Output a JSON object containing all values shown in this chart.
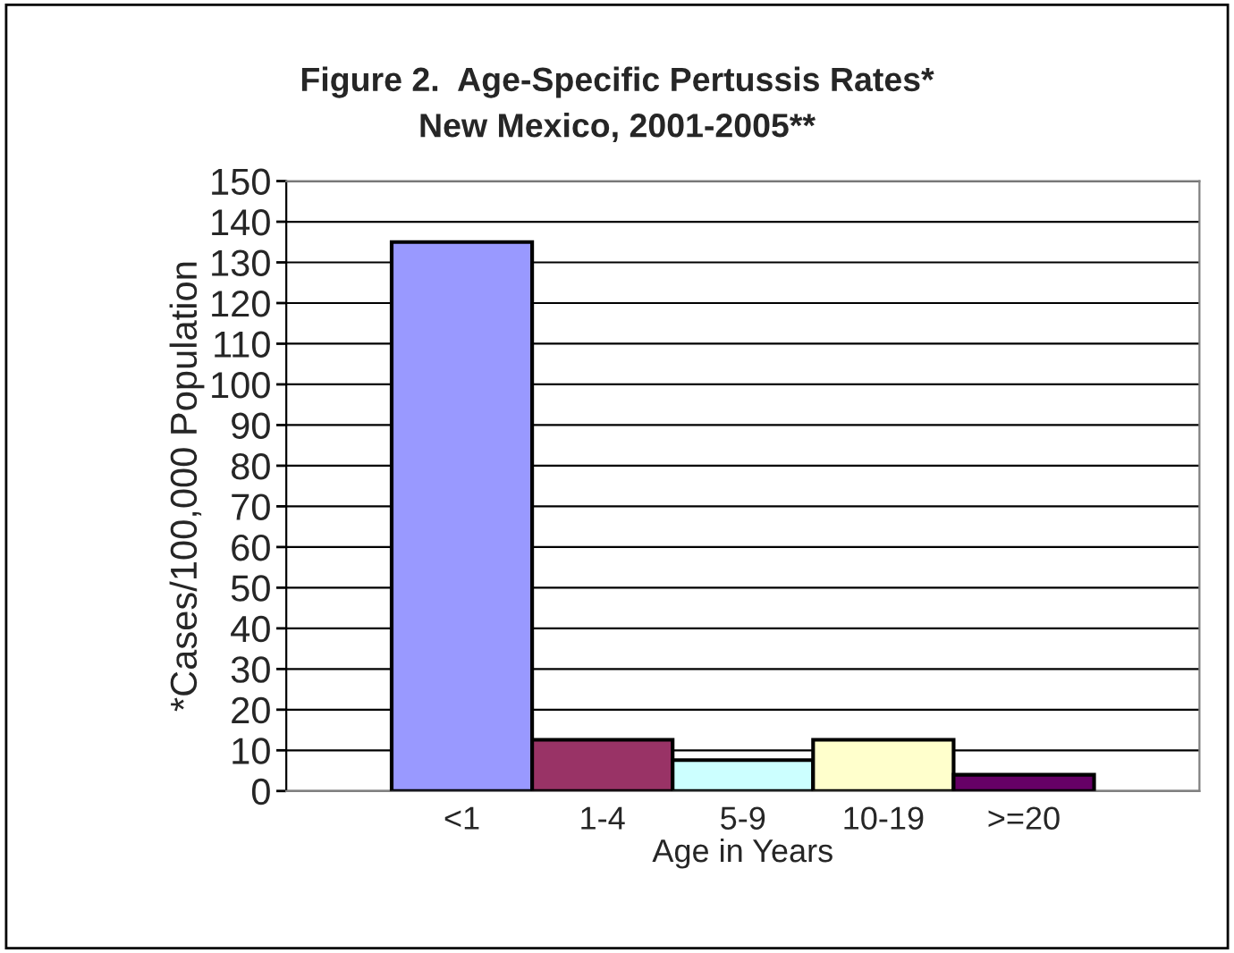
{
  "chart_data": {
    "type": "bar",
    "title": "Figure 2.  Age-Specific Pertussis Rates*\nNew Mexico, 2001-2005**",
    "xlabel": "Age in Years",
    "ylabel": "*Cases/100,000 Population",
    "categories": [
      "<1",
      "1-4",
      "5-9",
      "10-19",
      ">=20"
    ],
    "values": [
      135,
      12.6,
      7.6,
      12.6,
      4
    ],
    "colors": [
      "#9999ff",
      "#993366",
      "#ccffff",
      "#ffffcc",
      "#660066"
    ],
    "ylim": [
      0,
      150
    ],
    "yticks": [
      0,
      10,
      20,
      30,
      40,
      50,
      60,
      70,
      80,
      90,
      100,
      110,
      120,
      130,
      140,
      150
    ],
    "grid": "y",
    "legend": false
  }
}
